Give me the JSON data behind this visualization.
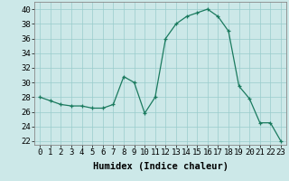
{
  "xlabel": "Humidex (Indice chaleur)",
  "ylabel": "",
  "x": [
    0,
    1,
    2,
    3,
    4,
    5,
    6,
    7,
    8,
    9,
    10,
    11,
    12,
    13,
    14,
    15,
    16,
    17,
    18,
    19,
    20,
    21,
    22,
    23
  ],
  "y": [
    28,
    27.5,
    27,
    26.8,
    26.8,
    26.5,
    26.5,
    27,
    30.8,
    30,
    25.8,
    28,
    36,
    38,
    39,
    39.5,
    40,
    39,
    37,
    29.5,
    27.8,
    24.5,
    24.5,
    22
  ],
  "line_color": "#1a7a5e",
  "marker_color": "#1a7a5e",
  "bg_color": "#cce8e8",
  "grid_color": "#99cccc",
  "ylim": [
    21.5,
    41
  ],
  "yticks": [
    22,
    24,
    26,
    28,
    30,
    32,
    34,
    36,
    38,
    40
  ],
  "xlim": [
    -0.5,
    23.5
  ],
  "tick_label_fontsize": 6.5,
  "xlabel_fontsize": 7.5
}
